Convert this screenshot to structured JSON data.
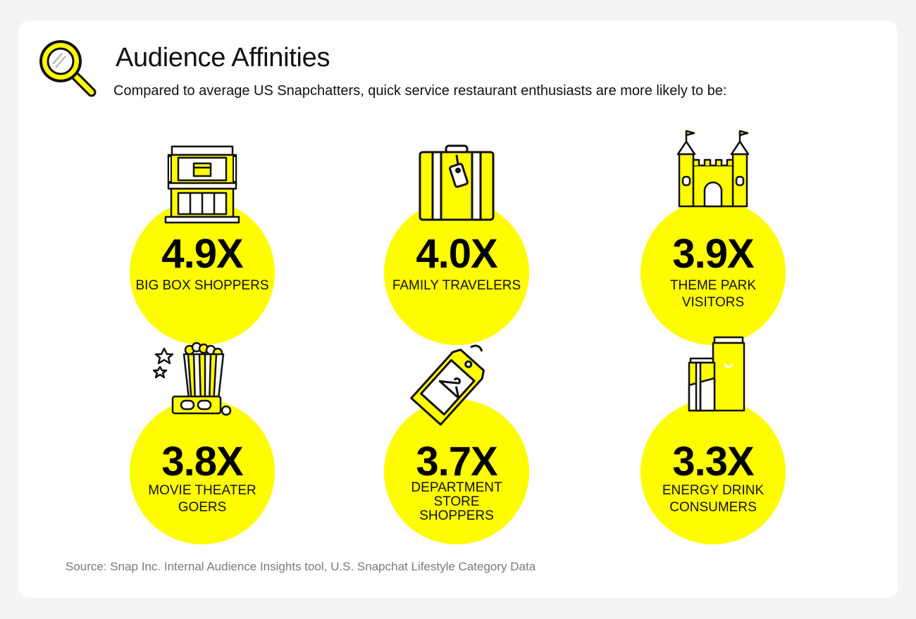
{
  "header": {
    "title": "Audience Affinities",
    "subtitle": "Compared to average US Snapchatters, quick service restaurant enthusiasts are more likely to be:"
  },
  "stats": [
    {
      "value": "4.9X",
      "label": "BIG BOX SHOPPERS",
      "icon": "store-icon"
    },
    {
      "value": "4.0X",
      "label": "FAMILY TRAVELERS",
      "icon": "suitcase-icon"
    },
    {
      "value": "3.9X",
      "label": "THEME PARK VISITORS",
      "icon": "castle-icon"
    },
    {
      "value": "3.8X",
      "label": "MOVIE THEATER GOERS",
      "icon": "popcorn-icon"
    },
    {
      "value": "3.7X",
      "label": "DEPARTMENT STORE SHOPPERS",
      "icon": "price-tag-icon"
    },
    {
      "value": "3.3X",
      "label": "ENERGY DRINK CONSUMERS",
      "icon": "energy-drink-icon"
    }
  ],
  "footer": {
    "source": "Source: Snap Inc. Internal Audience Insights tool, U.S. Snapchat Lifestyle Category Data"
  },
  "colors": {
    "accent": "#fffc00",
    "background": "#f4f4f4",
    "card": "#ffffff",
    "text": "#111111",
    "muted": "#7a7a7a"
  }
}
